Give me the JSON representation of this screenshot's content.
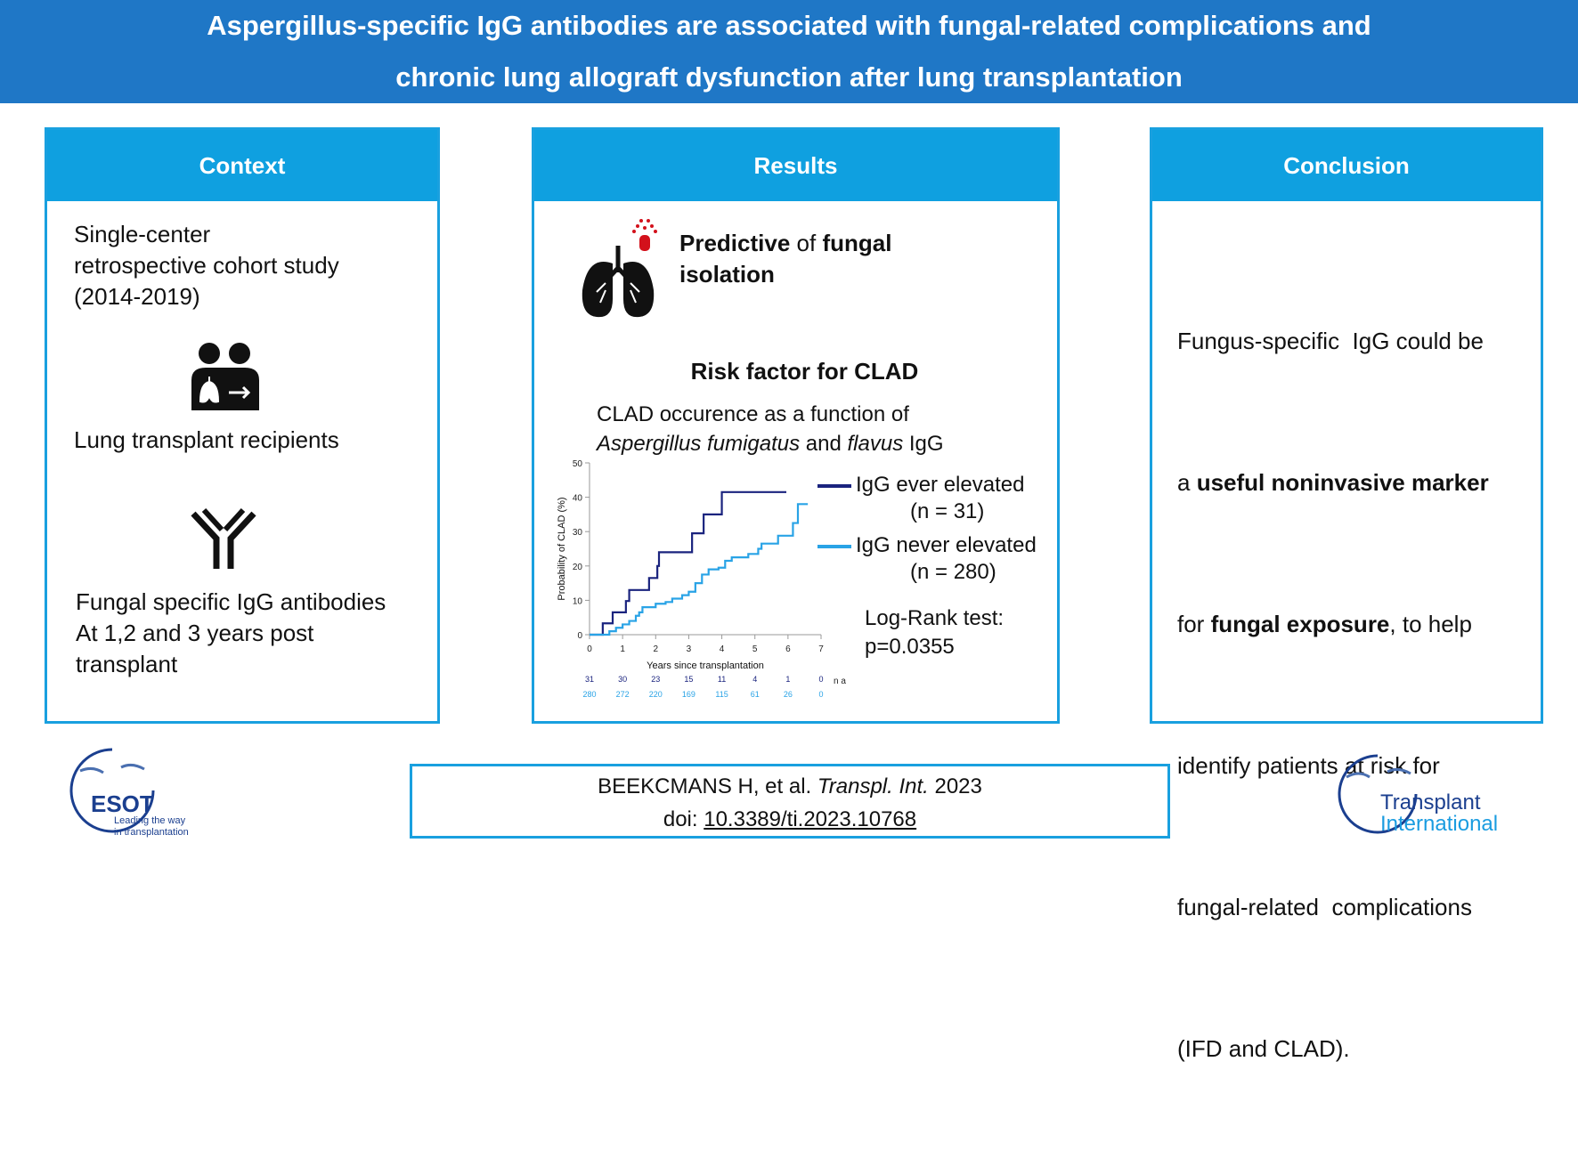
{
  "header": {
    "title_line1": "Aspergillus-specific IgG antibodies are associated with fungal-related complications and",
    "title_line2": "chronic lung allograft dysfunction after lung transplantation"
  },
  "context": {
    "heading": "Context",
    "study_lines": [
      "Single-center",
      "retrospective cohort study",
      "(2014-2019)"
    ],
    "recipients": "Lung transplant recipients",
    "antibody_lines": [
      "Fungal specific IgG antibodies",
      "At 1,2 and 3 years post",
      "transplant"
    ]
  },
  "results": {
    "heading": "Results",
    "predictive_bold1": "Predictive",
    "predictive_mid": " of ",
    "predictive_bold2": "fungal",
    "predictive_line2": "isolation",
    "risk_title": "Risk factor for CLAD",
    "chart_caption1": "CLAD occurence as a function of",
    "chart_caption2_italic1": "Aspergillus fumigatus",
    "chart_caption2_mid": " and ",
    "chart_caption2_italic2": "flavus",
    "chart_caption2_end": " IgG",
    "legend": [
      {
        "label": "IgG ever elevated",
        "n": "(n = 31)"
      },
      {
        "label": "IgG never elevated",
        "n": "(n = 280)"
      }
    ],
    "logrank_line1": "Log-Rank test:",
    "logrank_line2": "p=0.0355"
  },
  "chart_data": {
    "type": "line",
    "title": "CLAD occurence as a function of Aspergillus fumigatus and flavus IgG",
    "xlabel": "Years since transplantation",
    "ylabel": "Probability of CLAD (%)",
    "xlim": [
      0,
      7
    ],
    "ylim": [
      0,
      50
    ],
    "xticks": [
      "0",
      "1",
      "2",
      "3",
      "4",
      "5",
      "6",
      "7"
    ],
    "yticks": [
      "0",
      "10",
      "20",
      "30",
      "40",
      "50"
    ],
    "legend_position": "right",
    "at_risk_label": "n at risk",
    "series": [
      {
        "name": "IgG ever elevated",
        "color": "#1a237e",
        "step": true,
        "x": [
          0,
          0.4,
          0.7,
          1.1,
          1.2,
          1.8,
          2.05,
          2.1,
          3.1,
          3.45,
          4.0,
          5.95
        ],
        "y": [
          0,
          3.3,
          6.5,
          9.8,
          13,
          16.5,
          20,
          24,
          29.5,
          35,
          41.5,
          41.5
        ],
        "at_risk": [
          "31",
          "30",
          "23",
          "15",
          "11",
          "4",
          "1",
          "0"
        ]
      },
      {
        "name": "IgG never elevated",
        "color": "#29a3e6",
        "step": true,
        "x": [
          0,
          0.5,
          0.6,
          0.8,
          1.0,
          1.2,
          1.4,
          1.5,
          1.6,
          2.0,
          2.3,
          2.5,
          2.8,
          3.0,
          3.2,
          3.4,
          3.6,
          3.9,
          4.1,
          4.3,
          4.8,
          5.1,
          5.2,
          5.7,
          6.15,
          6.3,
          6.6
        ],
        "y": [
          0,
          0,
          1,
          2,
          3,
          4,
          5.5,
          6.5,
          8,
          9,
          9.5,
          10.5,
          11.5,
          12.5,
          15,
          17.5,
          19,
          19.5,
          21.5,
          22.5,
          23.5,
          25,
          26.5,
          28.8,
          32.5,
          38,
          38
        ],
        "at_risk": [
          "280",
          "272",
          "220",
          "169",
          "115",
          "61",
          "26",
          "0"
        ]
      }
    ]
  },
  "conclusion": {
    "heading": "Conclusion",
    "l1": "Fungus-specific  IgG could be",
    "l2_pre": "a ",
    "l2_bold": "useful noninvasive marker",
    "l3_pre": "for ",
    "l3_bold": "fungal exposure",
    "l3_post": ", to help",
    "l4": "identify patients at risk for",
    "l5": "fungal-related  complications",
    "l6": "(IFD and CLAD)."
  },
  "citation": {
    "authors": "BEEKCMANS H, et al. ",
    "journal": "Transpl. Int.",
    "year": " 2023",
    "doi_label": "doi: ",
    "doi": "10.3389/ti.2023.10768"
  },
  "logos": {
    "esot": {
      "name": "ESOT",
      "tagline1": "Leading the way",
      "tagline2": "in transplantation"
    },
    "ti": {
      "line1": "Transplant",
      "line2": "International"
    }
  }
}
